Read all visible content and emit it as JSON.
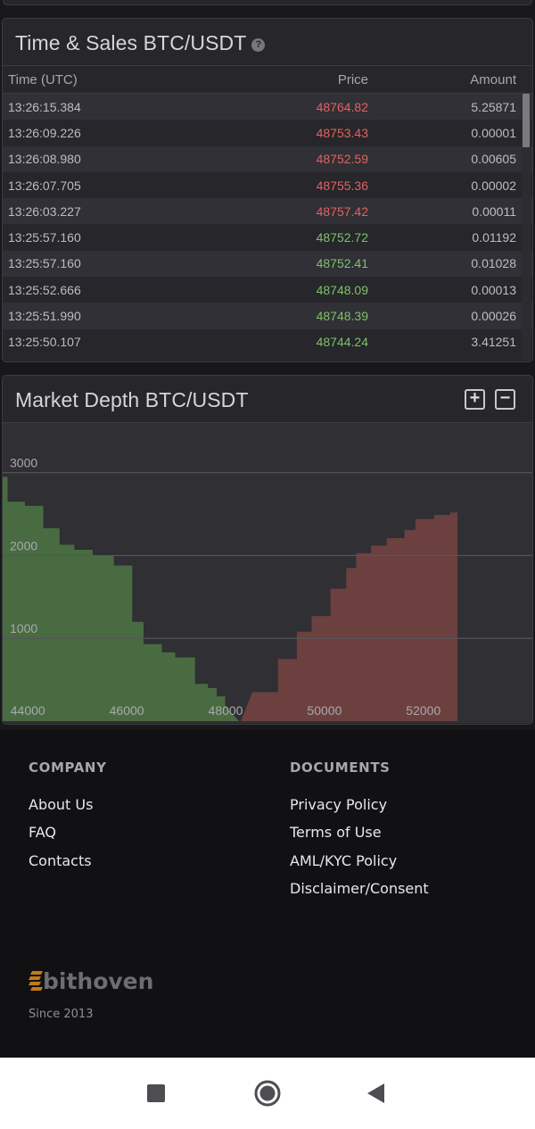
{
  "time_sales": {
    "title": "Time & Sales BTC/USDT",
    "help_icon": "question-circle-icon",
    "columns": {
      "time": "Time (UTC)",
      "price": "Price",
      "amount": "Amount"
    },
    "rows": [
      {
        "time": "13:26:15.384",
        "price": "48764.82",
        "amount": "5.25871",
        "side": "sell"
      },
      {
        "time": "13:26:09.226",
        "price": "48753.43",
        "amount": "0.00001",
        "side": "sell"
      },
      {
        "time": "13:26:08.980",
        "price": "48752.59",
        "amount": "0.00605",
        "side": "sell"
      },
      {
        "time": "13:26:07.705",
        "price": "48755.36",
        "amount": "0.00002",
        "side": "sell"
      },
      {
        "time": "13:26:03.227",
        "price": "48757.42",
        "amount": "0.00011",
        "side": "sell"
      },
      {
        "time": "13:25:57.160",
        "price": "48752.72",
        "amount": "0.01192",
        "side": "buy"
      },
      {
        "time": "13:25:57.160",
        "price": "48752.41",
        "amount": "0.01028",
        "side": "buy"
      },
      {
        "time": "13:25:52.666",
        "price": "48748.09",
        "amount": "0.00013",
        "side": "buy"
      },
      {
        "time": "13:25:51.990",
        "price": "48748.39",
        "amount": "0.00026",
        "side": "buy"
      },
      {
        "time": "13:25:50.107",
        "price": "48744.24",
        "amount": "3.41251",
        "side": "buy"
      }
    ]
  },
  "market_depth": {
    "title": "Market Depth BTC/USDT",
    "zoom_in_icon": "plus-square-icon",
    "zoom_out_icon": "minus-square-icon",
    "zoom_in_label": "+",
    "zoom_out_label": "−"
  },
  "chart_data": {
    "type": "area",
    "title": "Market Depth BTC/USDT",
    "xlabel": "",
    "ylabel": "",
    "xlim": [
      43950,
      54700
    ],
    "ylim": [
      0,
      3600
    ],
    "x_ticks": [
      44000,
      46000,
      48000,
      50000,
      52000
    ],
    "y_ticks": [
      1000,
      2000,
      3000
    ],
    "grid": true,
    "colors": {
      "bids": "#496b42",
      "asks": "#6b403f",
      "background": "#2f2f34"
    },
    "series": [
      {
        "side": "bids",
        "points": [
          [
            43950,
            2950
          ],
          [
            44050,
            2950
          ],
          [
            44050,
            2650
          ],
          [
            44400,
            2650
          ],
          [
            44400,
            2600
          ],
          [
            44770,
            2600
          ],
          [
            44770,
            2330
          ],
          [
            45100,
            2330
          ],
          [
            45100,
            2130
          ],
          [
            45400,
            2130
          ],
          [
            45400,
            2070
          ],
          [
            45770,
            2070
          ],
          [
            45770,
            2000
          ],
          [
            46200,
            2000
          ],
          [
            46200,
            1880
          ],
          [
            46570,
            1880
          ],
          [
            46570,
            1200
          ],
          [
            46800,
            1200
          ],
          [
            46800,
            930
          ],
          [
            47170,
            930
          ],
          [
            47170,
            830
          ],
          [
            47440,
            830
          ],
          [
            47440,
            770
          ],
          [
            47840,
            770
          ],
          [
            47840,
            450
          ],
          [
            48100,
            450
          ],
          [
            48100,
            400
          ],
          [
            48280,
            400
          ],
          [
            48280,
            300
          ],
          [
            48450,
            300
          ],
          [
            48450,
            180
          ],
          [
            48730,
            0
          ]
        ]
      },
      {
        "side": "asks",
        "points": [
          [
            48770,
            0
          ],
          [
            49000,
            350
          ],
          [
            49520,
            350
          ],
          [
            49520,
            750
          ],
          [
            49900,
            750
          ],
          [
            49900,
            1080
          ],
          [
            50200,
            1080
          ],
          [
            50200,
            1270
          ],
          [
            50580,
            1270
          ],
          [
            50580,
            1600
          ],
          [
            50900,
            1600
          ],
          [
            50900,
            1850
          ],
          [
            51100,
            1850
          ],
          [
            51100,
            2030
          ],
          [
            51400,
            2030
          ],
          [
            51400,
            2120
          ],
          [
            51720,
            2120
          ],
          [
            51720,
            2210
          ],
          [
            52080,
            2210
          ],
          [
            52080,
            2310
          ],
          [
            52300,
            2310
          ],
          [
            52300,
            2440
          ],
          [
            52680,
            2440
          ],
          [
            52680,
            2490
          ],
          [
            53000,
            2490
          ],
          [
            53000,
            2520
          ],
          [
            53150,
            2520
          ]
        ]
      }
    ]
  },
  "footer": {
    "company_heading": "COMPANY",
    "company_links": [
      "About Us",
      "FAQ",
      "Contacts"
    ],
    "documents_heading": "DOCUMENTS",
    "document_links": [
      "Privacy Policy",
      "Terms of Use",
      "AML/KYC Policy",
      "Disclaimer/Consent"
    ],
    "logo_text": "bithoven",
    "since": "Since 2013"
  },
  "navbar": {
    "recents_icon": "square-recents-icon",
    "home_icon": "circle-home-icon",
    "back_icon": "triangle-back-icon"
  }
}
